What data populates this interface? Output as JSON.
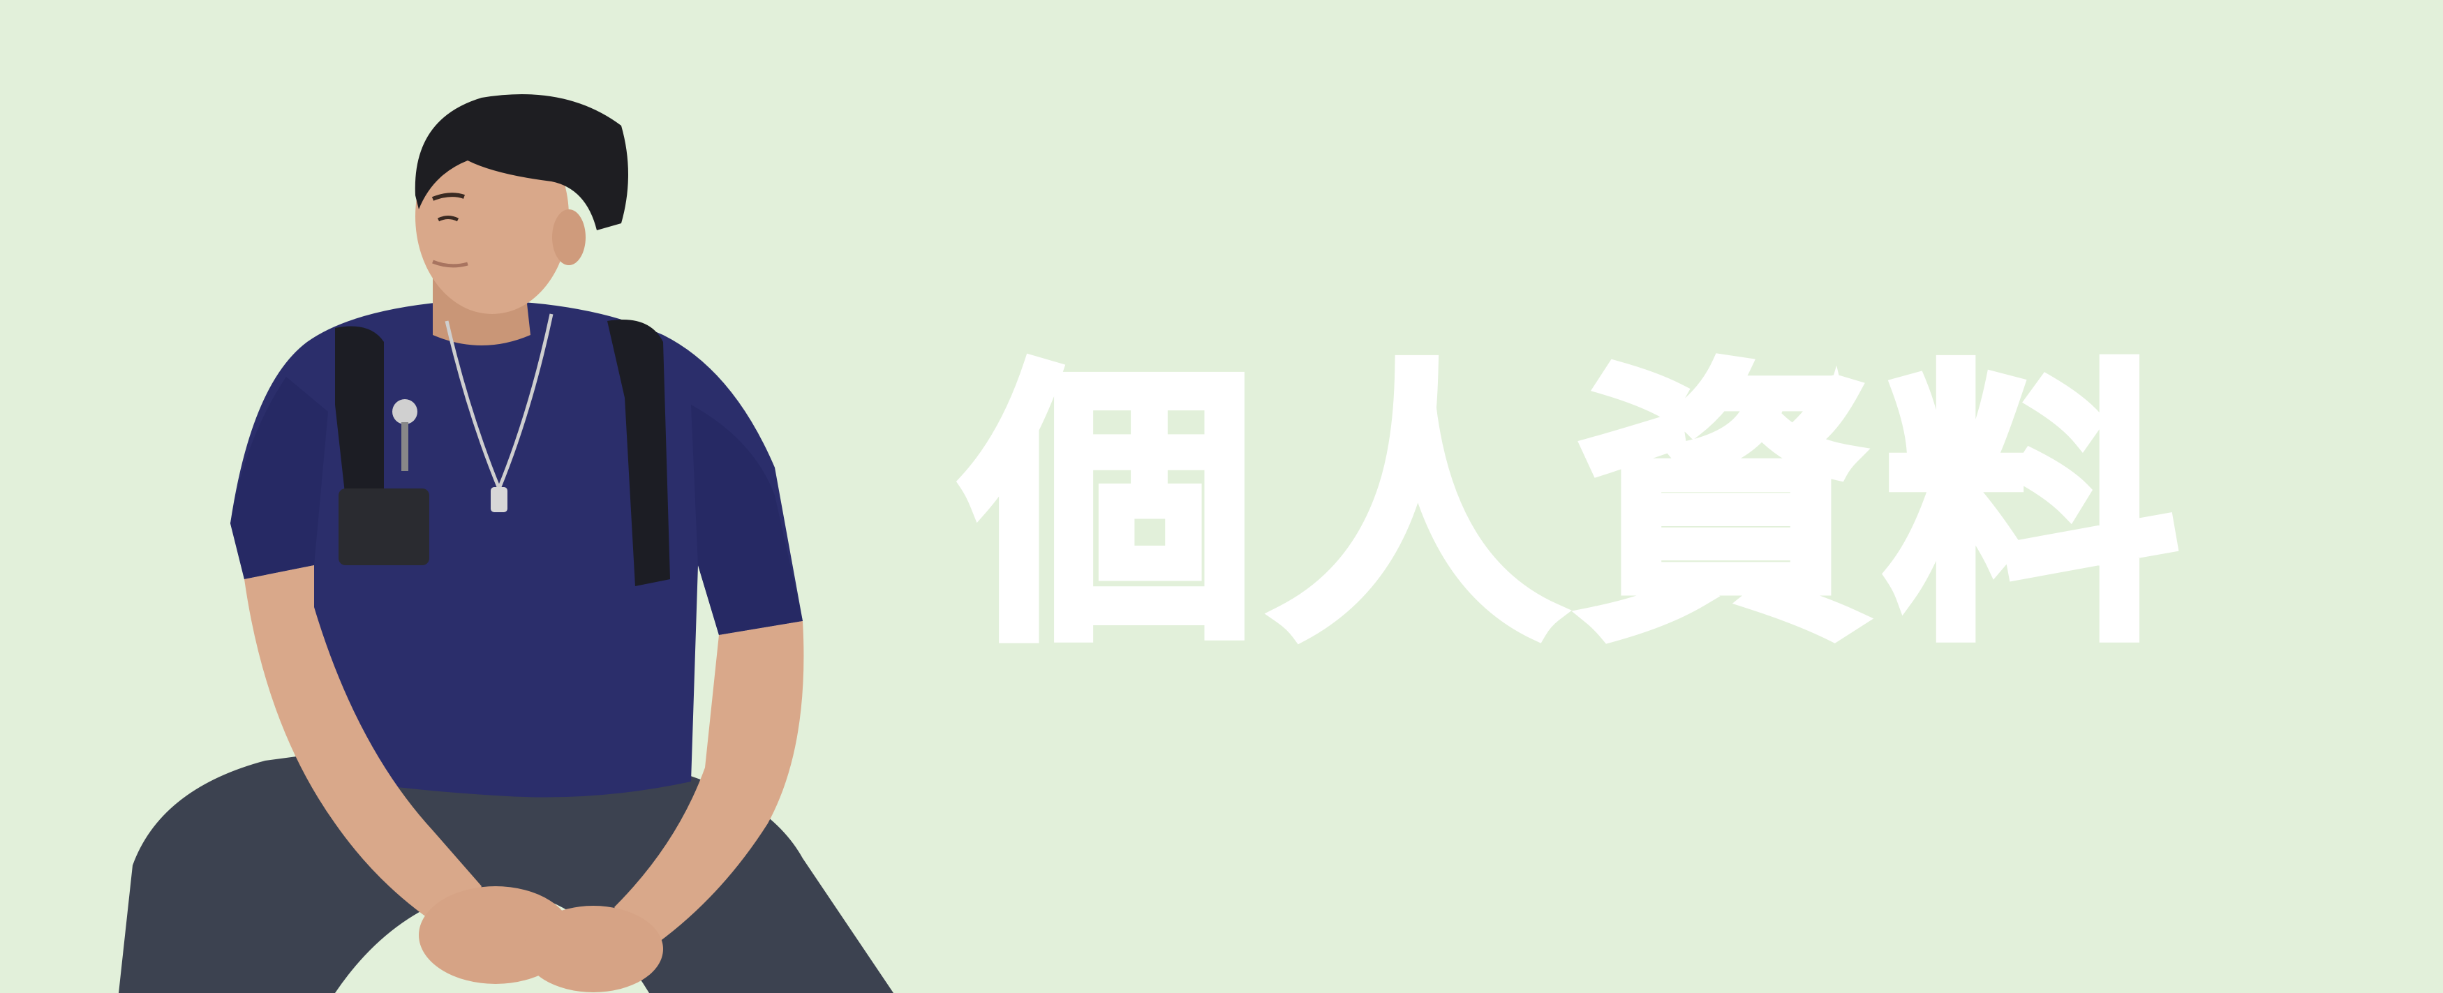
{
  "banner": {
    "background_color": "#e2f0da",
    "title": "個人資料",
    "title_color": "#ffffff"
  },
  "person": {
    "icon": "person-photo",
    "shirt_color": "#2b2e6b",
    "pants_color": "#3c4250",
    "hair_color": "#1e1e22",
    "skin_color": "#d9a88a"
  }
}
